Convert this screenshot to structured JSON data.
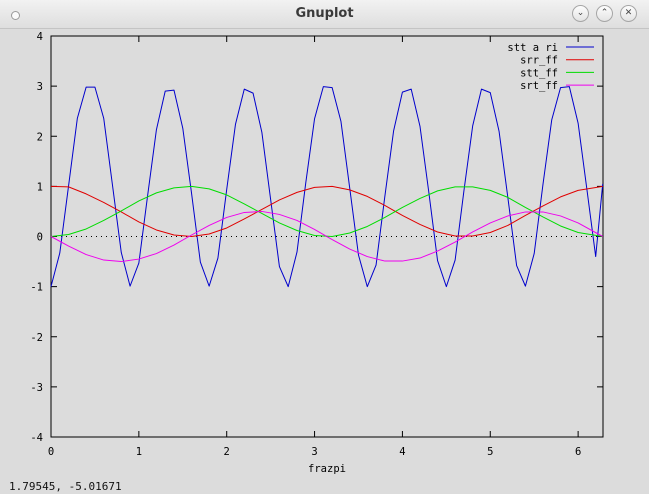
{
  "window": {
    "title": "Gnuplot",
    "buttons": [
      {
        "name": "minimize",
        "glyph": "⌄"
      },
      {
        "name": "maximize",
        "glyph": "⌃"
      },
      {
        "name": "close",
        "glyph": "✕"
      }
    ]
  },
  "status": {
    "coordinates": "1.79545, -5.01671"
  },
  "chart_data": {
    "type": "line",
    "xlabel": "frazpi",
    "ylabel": "",
    "xlim": [
      0,
      6.2832
    ],
    "ylim": [
      -4,
      4
    ],
    "xticks": [
      "0",
      "1",
      "2",
      "3",
      "4",
      "5",
      "6"
    ],
    "yticks": [
      "-4",
      "-3",
      "-2",
      "-1",
      "0",
      "1",
      "2",
      "3",
      "4"
    ],
    "zero_line": true,
    "legend_position": "top-right",
    "series": [
      {
        "name": "stt a ri",
        "color": "#0000cc",
        "x": [
          0,
          0.1,
          0.2,
          0.3,
          0.4,
          0.5,
          0.6,
          0.7,
          0.8,
          0.9,
          1.0,
          1.1,
          1.2,
          1.3,
          1.4,
          1.5,
          1.6,
          1.7,
          1.8,
          1.9,
          2.0,
          2.1,
          2.2,
          2.3,
          2.4,
          2.5,
          2.6,
          2.7,
          2.8,
          2.9,
          3.0,
          3.1,
          3.2,
          3.3,
          3.4,
          3.5,
          3.6,
          3.7,
          3.8,
          3.9,
          4.0,
          4.1,
          4.2,
          4.3,
          4.4,
          4.5,
          4.6,
          4.7,
          4.8,
          4.9,
          5.0,
          5.1,
          5.2,
          5.3,
          5.4,
          5.5,
          5.6,
          5.7,
          5.8,
          5.9,
          6.0,
          6.1,
          6.2,
          6.28
        ],
        "y": [
          -1.0,
          -0.33,
          1.01,
          2.36,
          2.98,
          2.98,
          2.36,
          1.02,
          -0.32,
          -0.99,
          -0.53,
          0.82,
          2.13,
          2.9,
          2.92,
          2.16,
          0.86,
          -0.51,
          -0.99,
          -0.43,
          0.94,
          2.24,
          2.94,
          2.86,
          2.08,
          0.74,
          -0.6,
          -1.0,
          -0.31,
          1.07,
          2.35,
          2.99,
          2.97,
          2.3,
          0.97,
          -0.37,
          -1.0,
          -0.57,
          0.8,
          2.11,
          2.88,
          2.94,
          2.2,
          0.89,
          -0.48,
          -1.0,
          -0.47,
          0.91,
          2.21,
          2.94,
          2.87,
          2.1,
          0.78,
          -0.58,
          -0.99,
          -0.34,
          1.04,
          2.33,
          2.97,
          2.99,
          2.26,
          0.94,
          -0.4,
          1.05
        ]
      },
      {
        "name": "srr_ff",
        "color": "#e00000",
        "x": [
          0,
          0.2,
          0.4,
          0.6,
          0.8,
          1.0,
          1.2,
          1.4,
          1.6,
          1.8,
          2.0,
          2.2,
          2.4,
          2.6,
          2.8,
          3.0,
          3.2,
          3.4,
          3.6,
          3.8,
          4.0,
          4.2,
          4.4,
          4.6,
          4.8,
          5.0,
          5.2,
          5.4,
          5.6,
          5.8,
          6.0,
          6.28
        ],
        "y": [
          1.0,
          0.99,
          0.85,
          0.68,
          0.49,
          0.29,
          0.13,
          0.03,
          0.0,
          0.05,
          0.17,
          0.35,
          0.54,
          0.73,
          0.88,
          0.98,
          1.0,
          0.93,
          0.8,
          0.62,
          0.42,
          0.24,
          0.09,
          0.01,
          0.01,
          0.08,
          0.22,
          0.42,
          0.61,
          0.79,
          0.92,
          1.0
        ]
      },
      {
        "name": "stt_ff",
        "color": "#00dd00",
        "x": [
          0,
          0.2,
          0.4,
          0.6,
          0.8,
          1.0,
          1.2,
          1.4,
          1.6,
          1.8,
          2.0,
          2.2,
          2.4,
          2.6,
          2.8,
          3.0,
          3.2,
          3.4,
          3.6,
          3.8,
          4.0,
          4.2,
          4.4,
          4.6,
          4.8,
          5.0,
          5.2,
          5.4,
          5.6,
          5.8,
          6.0,
          6.28
        ],
        "y": [
          0.0,
          0.04,
          0.15,
          0.32,
          0.51,
          0.71,
          0.87,
          0.97,
          1.0,
          0.95,
          0.83,
          0.65,
          0.46,
          0.27,
          0.12,
          0.02,
          0.0,
          0.07,
          0.2,
          0.38,
          0.58,
          0.76,
          0.91,
          0.99,
          0.99,
          0.92,
          0.78,
          0.58,
          0.39,
          0.21,
          0.08,
          0.0
        ]
      },
      {
        "name": "srt_ff",
        "color": "#ee00ee",
        "x": [
          0,
          0.2,
          0.4,
          0.6,
          0.8,
          1.0,
          1.2,
          1.4,
          1.6,
          1.8,
          2.0,
          2.2,
          2.4,
          2.6,
          2.8,
          3.0,
          3.2,
          3.4,
          3.6,
          3.8,
          4.0,
          4.2,
          4.4,
          4.6,
          4.8,
          5.0,
          5.2,
          5.4,
          5.6,
          5.8,
          6.0,
          6.28
        ],
        "y": [
          0.0,
          -0.19,
          -0.36,
          -0.47,
          -0.5,
          -0.45,
          -0.34,
          -0.17,
          0.03,
          0.22,
          0.38,
          0.48,
          0.5,
          0.44,
          0.32,
          0.14,
          -0.06,
          -0.25,
          -0.4,
          -0.49,
          -0.49,
          -0.43,
          -0.29,
          -0.11,
          0.09,
          0.27,
          0.41,
          0.49,
          0.49,
          0.41,
          0.27,
          0.0
        ]
      }
    ]
  }
}
